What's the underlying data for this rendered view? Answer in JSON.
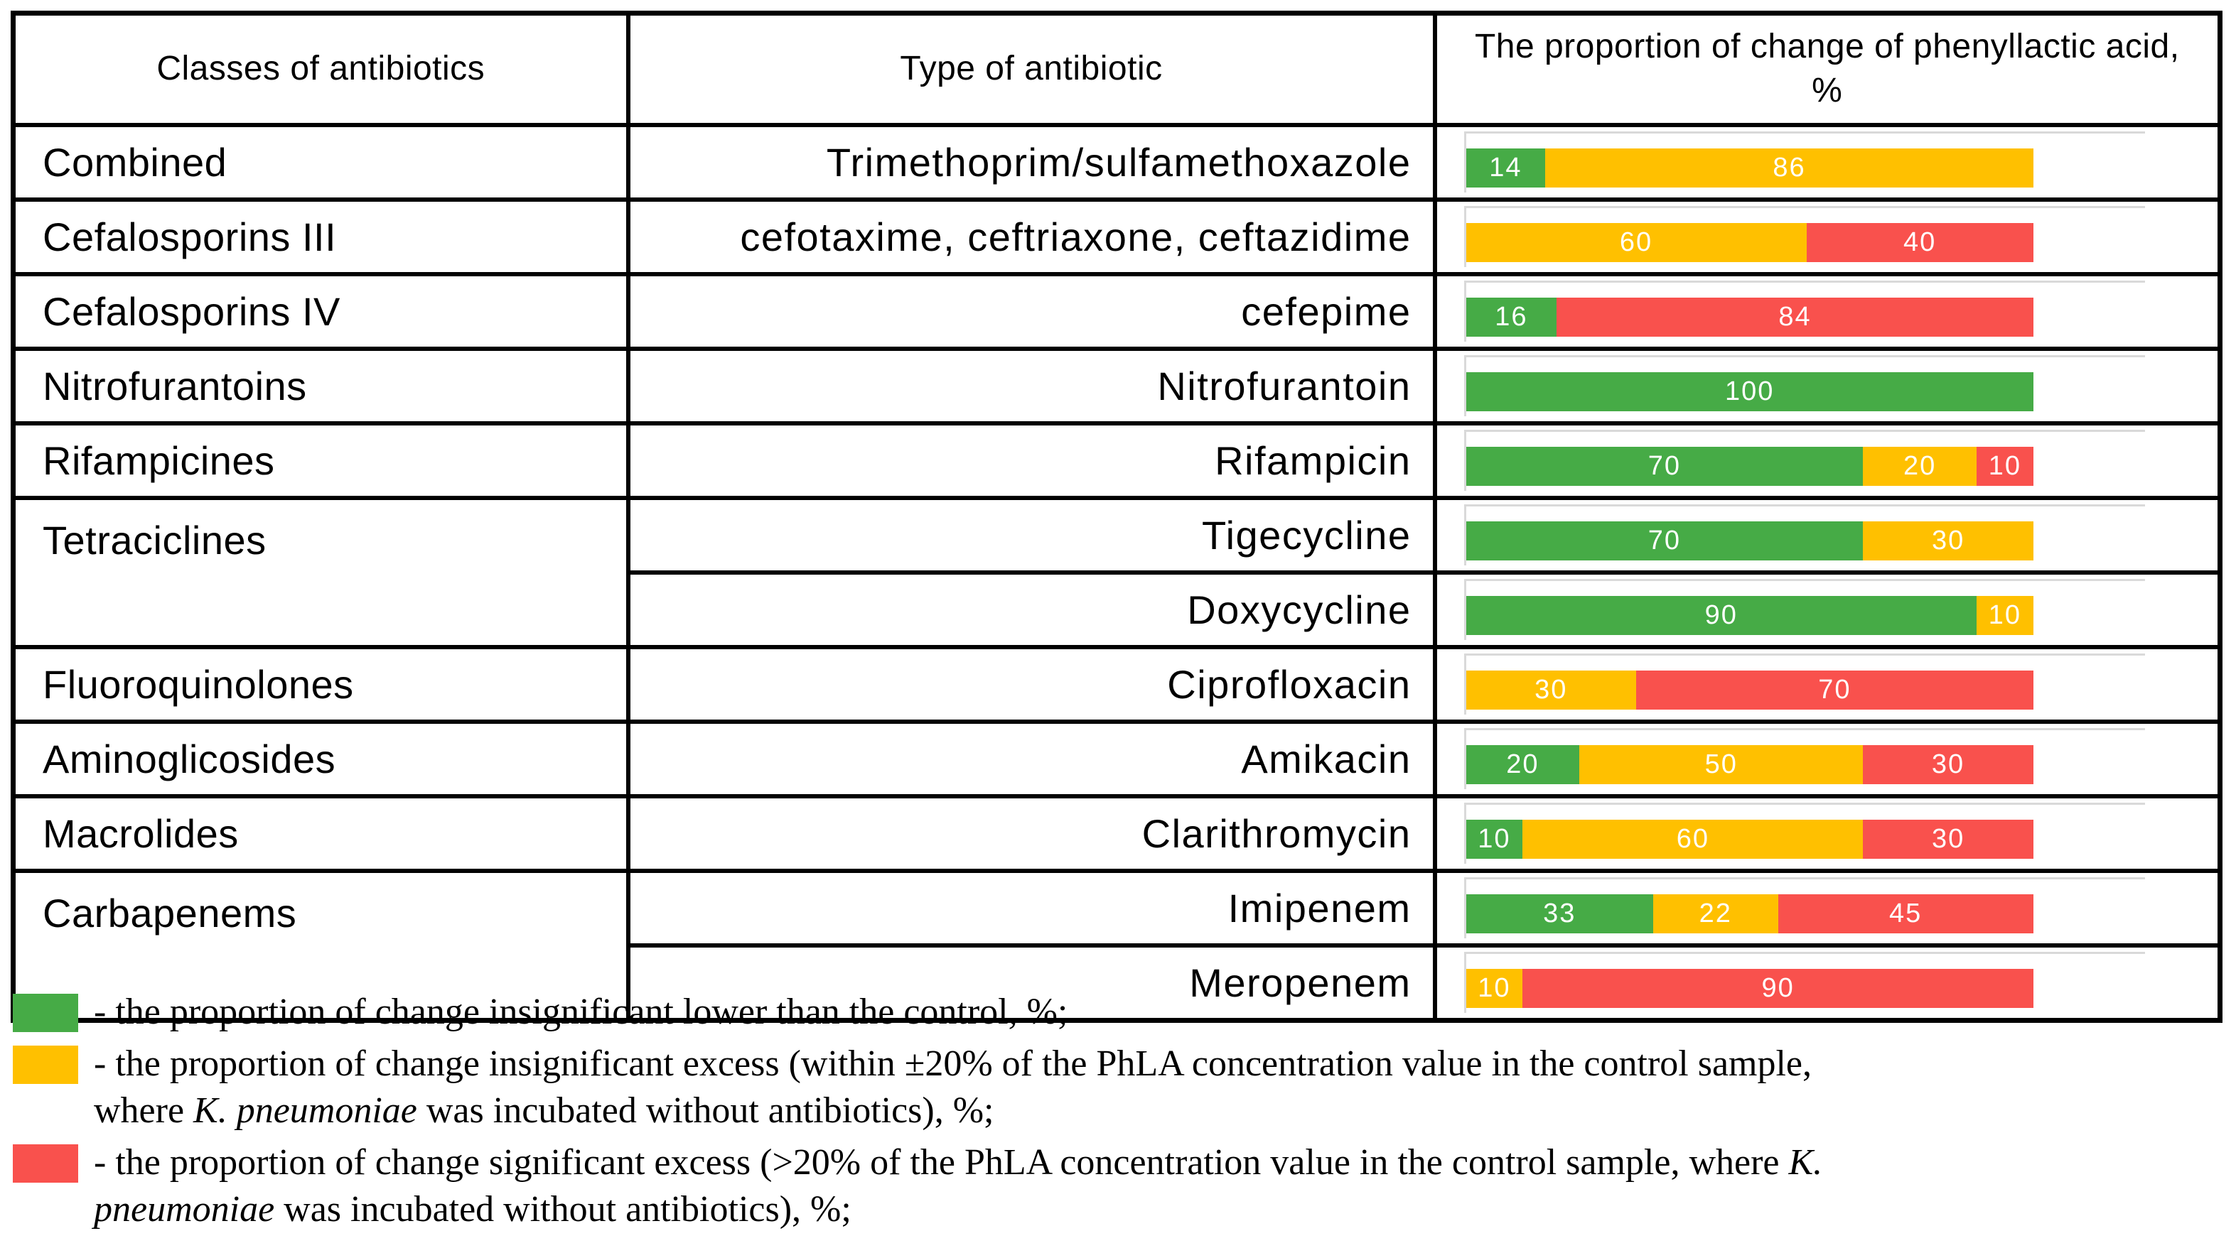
{
  "header": {
    "col1": "Classes of antibiotics",
    "col2": "Type of antibiotic",
    "col3": "The proportion of change of phenyllactic acid, %"
  },
  "colors": {
    "green": "#46AB46",
    "yellow": "#FFC000",
    "red": "#F9514D",
    "grid": "#D9D9D9",
    "border": "#000000",
    "bar_label": "#FFFFFF"
  },
  "rows": [
    {
      "class": "Combined",
      "class_span": 1,
      "antibiotic": "Trimethoprim/sulfamethoxazole",
      "segments": [
        {
          "color": "green",
          "value": 14
        },
        {
          "color": "yellow",
          "value": 86
        }
      ]
    },
    {
      "class": "Cefalosporins III",
      "class_span": 1,
      "antibiotic": "cefotaxime, ceftriaxone, ceftazidime",
      "segments": [
        {
          "color": "yellow",
          "value": 60
        },
        {
          "color": "red",
          "value": 40
        }
      ]
    },
    {
      "class": "Cefalosporins IV",
      "class_span": 1,
      "antibiotic": "cefepime",
      "segments": [
        {
          "color": "green",
          "value": 16
        },
        {
          "color": "red",
          "value": 84
        }
      ]
    },
    {
      "class": "Nitrofurantoins",
      "class_span": 1,
      "antibiotic": "Nitrofurantoin",
      "segments": [
        {
          "color": "green",
          "value": 100
        }
      ]
    },
    {
      "class": "Rifampicines",
      "class_span": 1,
      "antibiotic": "Rifampicin",
      "segments": [
        {
          "color": "green",
          "value": 70
        },
        {
          "color": "yellow",
          "value": 20
        },
        {
          "color": "red",
          "value": 10
        }
      ]
    },
    {
      "class": "Tetraciclines",
      "class_span": 2,
      "antibiotic": "Tigecycline",
      "segments": [
        {
          "color": "green",
          "value": 70
        },
        {
          "color": "yellow",
          "value": 30
        }
      ]
    },
    {
      "class": null,
      "antibiotic": "Doxycycline",
      "segments": [
        {
          "color": "green",
          "value": 90
        },
        {
          "color": "yellow",
          "value": 10
        }
      ]
    },
    {
      "class": "Fluoroquinolones",
      "class_span": 1,
      "antibiotic": "Ciprofloxacin",
      "segments": [
        {
          "color": "yellow",
          "value": 30
        },
        {
          "color": "red",
          "value": 70
        }
      ]
    },
    {
      "class": "Aminoglicosides",
      "class_span": 1,
      "antibiotic": "Amikacin",
      "segments": [
        {
          "color": "green",
          "value": 20
        },
        {
          "color": "yellow",
          "value": 50
        },
        {
          "color": "red",
          "value": 30
        }
      ]
    },
    {
      "class": "Macrolides",
      "class_span": 1,
      "antibiotic": "Clarithromycin",
      "segments": [
        {
          "color": "green",
          "value": 10
        },
        {
          "color": "yellow",
          "value": 60
        },
        {
          "color": "red",
          "value": 30
        }
      ]
    },
    {
      "class": "Carbapenems",
      "class_span": 2,
      "antibiotic": "Imipenem",
      "segments": [
        {
          "color": "green",
          "value": 33
        },
        {
          "color": "yellow",
          "value": 22
        },
        {
          "color": "red",
          "value": 45
        }
      ]
    },
    {
      "class": null,
      "antibiotic": "Meropenem",
      "segments": [
        {
          "color": "yellow",
          "value": 10
        },
        {
          "color": "red",
          "value": 90
        }
      ]
    }
  ],
  "legend": [
    {
      "color": "green",
      "lines": [
        [
          {
            "t": "- the proportion of change insignificant lower than the control, %;"
          }
        ]
      ]
    },
    {
      "color": "yellow",
      "lines": [
        [
          {
            "t": "- the proportion of change insignificant excess (within ±20% of the PhLA concentration value in the control sample,"
          }
        ],
        [
          {
            "t": "where "
          },
          {
            "t": "K. pneumoniae",
            "i": true
          },
          {
            "t": " was incubated without antibiotics), %;"
          }
        ]
      ]
    },
    {
      "color": "red",
      "lines": [
        [
          {
            "t": "- the proportion of change significant excess (>20% of the PhLA concentration value in the control sample, where "
          },
          {
            "t": "K.",
            "i": true
          }
        ],
        [
          {
            "t": "pneumoniae",
            "i": true
          },
          {
            "t": " was incubated without antibiotics), %;"
          }
        ]
      ]
    }
  ],
  "chart_data": {
    "type": "bar",
    "stacked": true,
    "orientation": "horizontal",
    "title": "The proportion of change of phenyllactic acid, %",
    "categories": [
      "Trimethoprim/sulfamethoxazole",
      "cefotaxime, ceftriaxone, ceftazidime",
      "cefepime",
      "Nitrofurantoin",
      "Rifampicin",
      "Tigecycline",
      "Doxycycline",
      "Ciprofloxacin",
      "Amikacin",
      "Clarithromycin",
      "Imipenem",
      "Meropenem"
    ],
    "category_classes": [
      "Combined",
      "Cefalosporins III",
      "Cefalosporins IV",
      "Nitrofurantoins",
      "Rifampicines",
      "Tetraciclines",
      "Tetraciclines",
      "Fluoroquinolones",
      "Aminoglicosides",
      "Macrolides",
      "Carbapenems",
      "Carbapenems"
    ],
    "series": [
      {
        "name": "the proportion of change insignificant lower than the control, %",
        "color": "#46AB46",
        "values": [
          14,
          0,
          16,
          100,
          70,
          70,
          90,
          0,
          20,
          10,
          33,
          0
        ]
      },
      {
        "name": "the proportion of change insignificant excess (within ±20% of the PhLA concentration value in the control sample), %",
        "color": "#FFC000",
        "values": [
          86,
          60,
          0,
          0,
          20,
          30,
          10,
          30,
          50,
          60,
          22,
          10
        ]
      },
      {
        "name": "the proportion of change significant excess (>20% of the PhLA concentration value in the control sample), %",
        "color": "#F9514D",
        "values": [
          0,
          40,
          84,
          0,
          10,
          0,
          0,
          70,
          30,
          30,
          45,
          90
        ]
      }
    ],
    "xlim": [
      0,
      120
    ],
    "grid": false,
    "legend_position": "bottom",
    "value_labels": "inside-white"
  }
}
